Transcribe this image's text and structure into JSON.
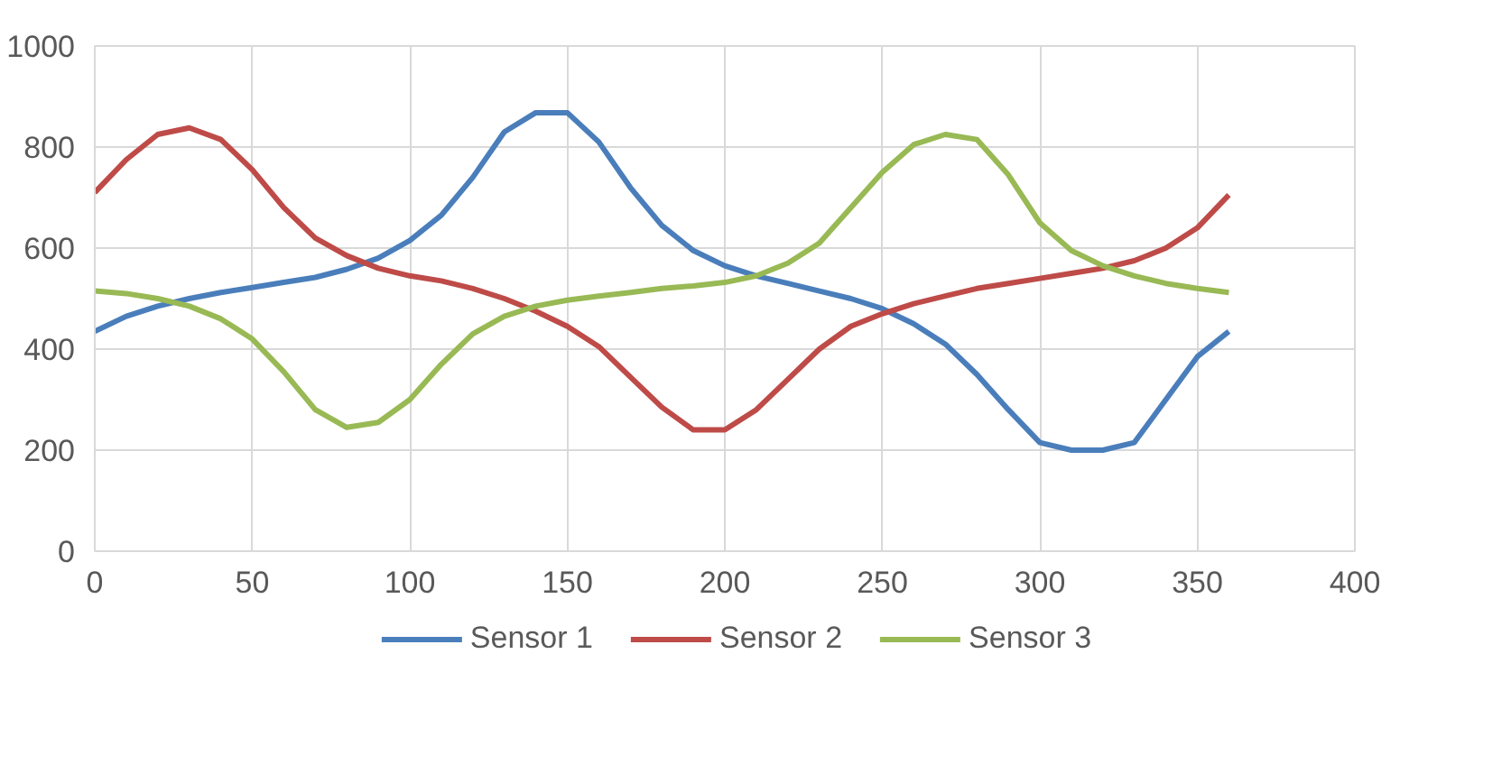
{
  "chart_data": {
    "type": "line",
    "x": [
      0,
      10,
      20,
      30,
      40,
      50,
      60,
      70,
      80,
      90,
      100,
      110,
      120,
      130,
      140,
      150,
      160,
      170,
      180,
      190,
      200,
      210,
      220,
      230,
      240,
      250,
      260,
      270,
      280,
      290,
      300,
      310,
      320,
      330,
      340,
      350,
      360
    ],
    "series": [
      {
        "name": "Sensor 1",
        "color": "#4a7ebb",
        "values": [
          435,
          465,
          485,
          500,
          512,
          522,
          532,
          542,
          558,
          580,
          615,
          665,
          740,
          830,
          868,
          868,
          810,
          720,
          645,
          595,
          565,
          545,
          530,
          515,
          500,
          480,
          450,
          410,
          350,
          280,
          215,
          200,
          200,
          215,
          300,
          385,
          435
        ]
      },
      {
        "name": "Sensor 2",
        "color": "#be4b48",
        "values": [
          710,
          775,
          825,
          838,
          815,
          755,
          680,
          620,
          585,
          560,
          545,
          535,
          520,
          500,
          475,
          445,
          405,
          345,
          285,
          240,
          240,
          280,
          340,
          400,
          445,
          470,
          490,
          505,
          520,
          530,
          540,
          550,
          560,
          575,
          600,
          640,
          705
        ]
      },
      {
        "name": "Sensor 3",
        "color": "#98b954",
        "values": [
          515,
          510,
          500,
          485,
          460,
          420,
          355,
          280,
          245,
          255,
          300,
          370,
          430,
          465,
          485,
          497,
          505,
          512,
          520,
          525,
          532,
          545,
          570,
          610,
          680,
          750,
          805,
          825,
          815,
          745,
          650,
          595,
          565,
          545,
          530,
          520,
          512
        ]
      }
    ],
    "xlim": [
      0,
      400
    ],
    "xticks": [
      0,
      50,
      100,
      150,
      200,
      250,
      300,
      350,
      400
    ],
    "ylim": [
      0,
      1000
    ],
    "yticks": [
      0,
      200,
      400,
      600,
      800,
      1000
    ],
    "grid": true,
    "legend": "bottom",
    "marker": "none",
    "line_style": "solid"
  }
}
